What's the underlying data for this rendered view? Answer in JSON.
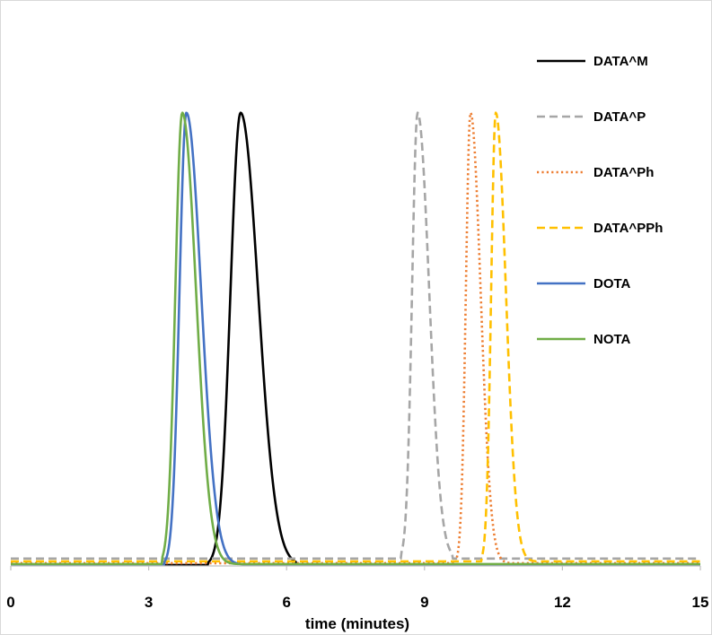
{
  "chart_data": {
    "type": "line",
    "title": "",
    "xlabel": "time (minutes)",
    "ylabel": "",
    "xlim": [
      0,
      15
    ],
    "ylim": [
      0,
      1
    ],
    "xticks": [
      0,
      3,
      6,
      9,
      12,
      15
    ],
    "grid": false,
    "legend_position": "top-right",
    "series": [
      {
        "name": "DATA^M",
        "color": "#000000",
        "style": "solid",
        "peak_time": 5.0,
        "peak_height": 0.985,
        "baseline": 0.002,
        "left_width": 0.22,
        "right_width": 0.38,
        "start": 4.3,
        "end": 6.2
      },
      {
        "name": "DATA^P",
        "color": "#a6a6a6",
        "style": "dashed",
        "peak_time": 8.85,
        "peak_height": 0.985,
        "baseline": 0.016,
        "left_width": 0.12,
        "right_width": 0.25,
        "start": 8.5,
        "end": 9.6
      },
      {
        "name": "DATA^Ph",
        "color": "#ed7d31",
        "style": "dotted",
        "peak_time": 10.0,
        "peak_height": 0.985,
        "baseline": 0.006,
        "left_width": 0.1,
        "right_width": 0.22,
        "start": 9.7,
        "end": 10.9
      },
      {
        "name": "DATA^PPh",
        "color": "#ffc000",
        "style": "dashed",
        "peak_time": 10.55,
        "peak_height": 0.985,
        "baseline": 0.01,
        "left_width": 0.1,
        "right_width": 0.22,
        "start": 10.25,
        "end": 11.4
      },
      {
        "name": "DOTA",
        "color": "#4472c4",
        "style": "solid",
        "peak_time": 3.82,
        "peak_height": 0.985,
        "baseline": 0.003,
        "left_width": 0.15,
        "right_width": 0.32,
        "start": 3.35,
        "end": 5.2
      },
      {
        "name": "NOTA",
        "color": "#70ad47",
        "style": "solid",
        "peak_time": 3.73,
        "peak_height": 0.985,
        "baseline": 0.004,
        "left_width": 0.15,
        "right_width": 0.3,
        "start": 3.3,
        "end": 5.0
      }
    ]
  }
}
